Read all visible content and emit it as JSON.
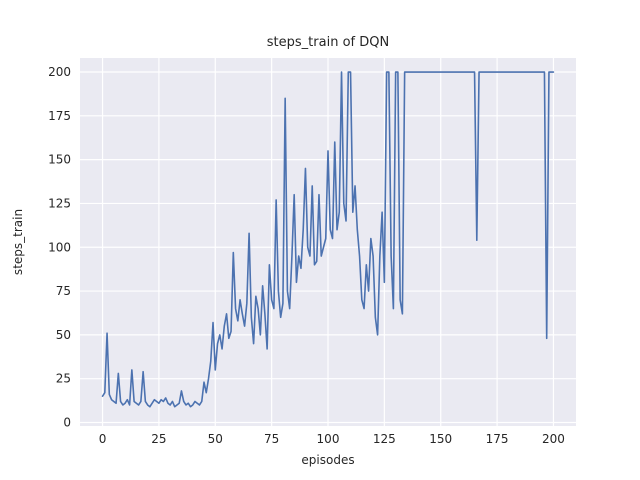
{
  "chart_data": {
    "type": "line",
    "title": "steps_train of DQN",
    "xlabel": "episodes",
    "ylabel": "steps_train",
    "xlim": [
      -10,
      210
    ],
    "ylim": [
      -2,
      208
    ],
    "xticks": [
      0,
      25,
      50,
      75,
      100,
      125,
      150,
      175,
      200
    ],
    "yticks": [
      0,
      25,
      50,
      75,
      100,
      125,
      150,
      175,
      200
    ],
    "line_color": "#4c72b0",
    "plot_bg": "#eaeaf2",
    "grid_color": "#ffffff",
    "x_start": 0,
    "x_step": 1,
    "values": [
      15,
      17,
      51,
      16,
      13,
      12,
      11,
      28,
      12,
      10,
      11,
      13,
      10,
      30,
      12,
      11,
      10,
      12,
      29,
      12,
      10,
      9,
      11,
      13,
      12,
      11,
      13,
      12,
      14,
      11,
      10,
      12,
      9,
      10,
      11,
      18,
      12,
      10,
      11,
      9,
      10,
      12,
      11,
      10,
      12,
      23,
      17,
      25,
      35,
      57,
      30,
      45,
      50,
      42,
      55,
      62,
      48,
      52,
      97,
      65,
      58,
      70,
      62,
      55,
      68,
      108,
      60,
      45,
      72,
      65,
      50,
      78,
      62,
      42,
      90,
      70,
      65,
      127,
      75,
      60,
      68,
      185,
      75,
      65,
      95,
      130,
      80,
      95,
      88,
      110,
      145,
      100,
      95,
      135,
      90,
      92,
      130,
      95,
      100,
      105,
      155,
      110,
      105,
      160,
      110,
      120,
      200,
      125,
      115,
      200,
      200,
      120,
      135,
      110,
      95,
      70,
      65,
      90,
      75,
      105,
      95,
      60,
      50,
      95,
      120,
      80,
      200,
      200,
      95,
      65,
      200,
      200,
      70,
      62,
      200,
      200,
      200,
      200,
      200,
      200,
      200,
      200,
      200,
      200,
      200,
      200,
      200,
      200,
      200,
      200,
      200,
      200,
      200,
      200,
      200,
      200,
      200,
      200,
      200,
      200,
      200,
      200,
      200,
      200,
      200,
      200,
      104,
      200,
      200,
      200,
      200,
      200,
      200,
      200,
      200,
      200,
      200,
      200,
      200,
      200,
      200,
      200,
      200,
      200,
      200,
      200,
      200,
      200,
      200,
      200,
      200,
      200,
      200,
      200,
      200,
      200,
      200,
      48,
      200,
      200,
      200
    ]
  }
}
